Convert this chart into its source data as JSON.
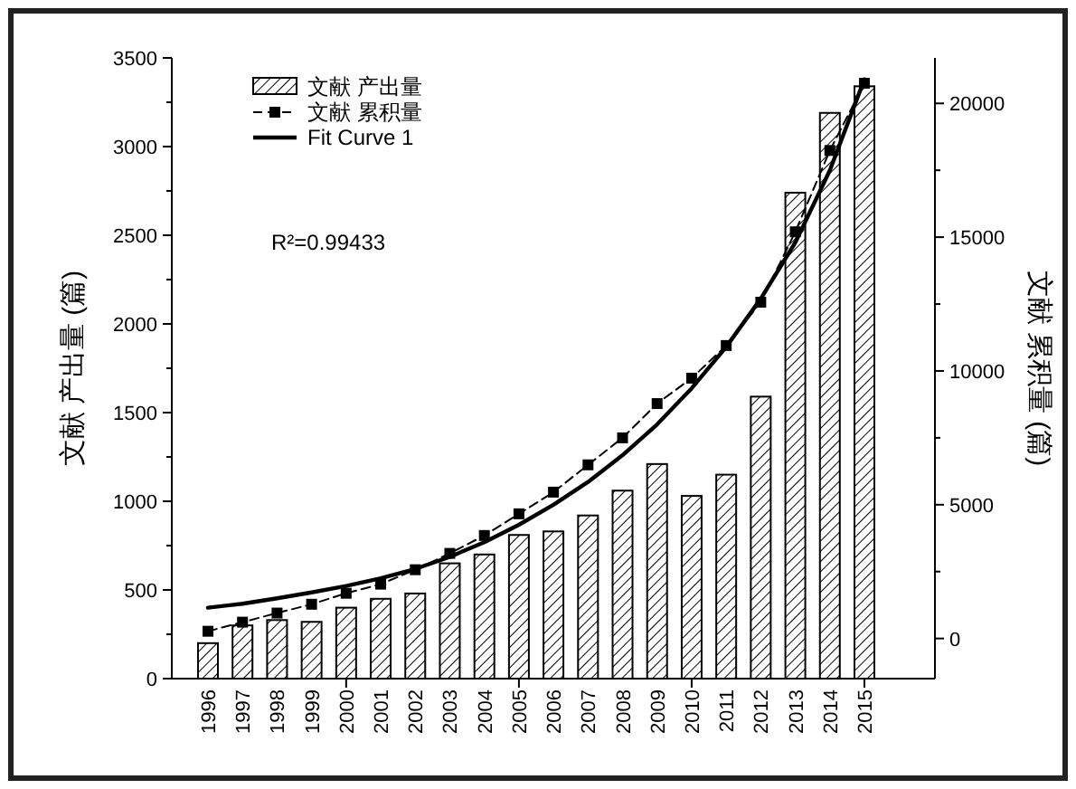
{
  "chart_data": {
    "type": "bar",
    "ylabel": "文献 产出量 (篇)",
    "y2label": "文献 累积量 (篇)",
    "categories": [
      "1996",
      "1997",
      "1998",
      "1999",
      "2000",
      "2001",
      "2002",
      "2003",
      "2004",
      "2005",
      "2006",
      "2007",
      "2008",
      "2009",
      "2010",
      "2011",
      "2012",
      "2013",
      "2014",
      "2015"
    ],
    "series": [
      {
        "name": "文献 产出量",
        "color": "#000000",
        "values": [
          200,
          300,
          330,
          320,
          400,
          450,
          480,
          650,
          700,
          810,
          830,
          920,
          1060,
          1210,
          1030,
          1150,
          1590,
          2740,
          3190,
          3340
        ]
      },
      {
        "name": "文献 累积量",
        "type": "line",
        "axis": "y2",
        "color": "#000000",
        "marker": "square",
        "line_style": "dashed",
        "values": [
          270,
          610,
          950,
          1280,
          1690,
          2030,
          2570,
          3180,
          3850,
          4660,
          5470,
          6490,
          7500,
          8780,
          9730,
          10950,
          12570,
          15200,
          18240,
          20750
        ]
      },
      {
        "name": "Fit Curve 1",
        "type": "line",
        "axis": "y2",
        "color": "#000000",
        "marker": "none",
        "line_style": "solid",
        "values": [
          1150,
          1300,
          1500,
          1720,
          1960,
          2250,
          2600,
          3050,
          3600,
          4250,
          5000,
          5850,
          6850,
          8000,
          9350,
          10900,
          12700,
          14800,
          17500,
          20900
        ]
      }
    ],
    "ylim": [
      0,
      3500
    ],
    "yticks": [
      0,
      500,
      1000,
      1500,
      2000,
      2500,
      3000,
      3500
    ],
    "y2lim": [
      -1500,
      21700
    ],
    "y2ticks": [
      0,
      5000,
      10000,
      15000,
      20000
    ],
    "annotations": [
      "R²=0.99433"
    ],
    "legend": "top left"
  }
}
